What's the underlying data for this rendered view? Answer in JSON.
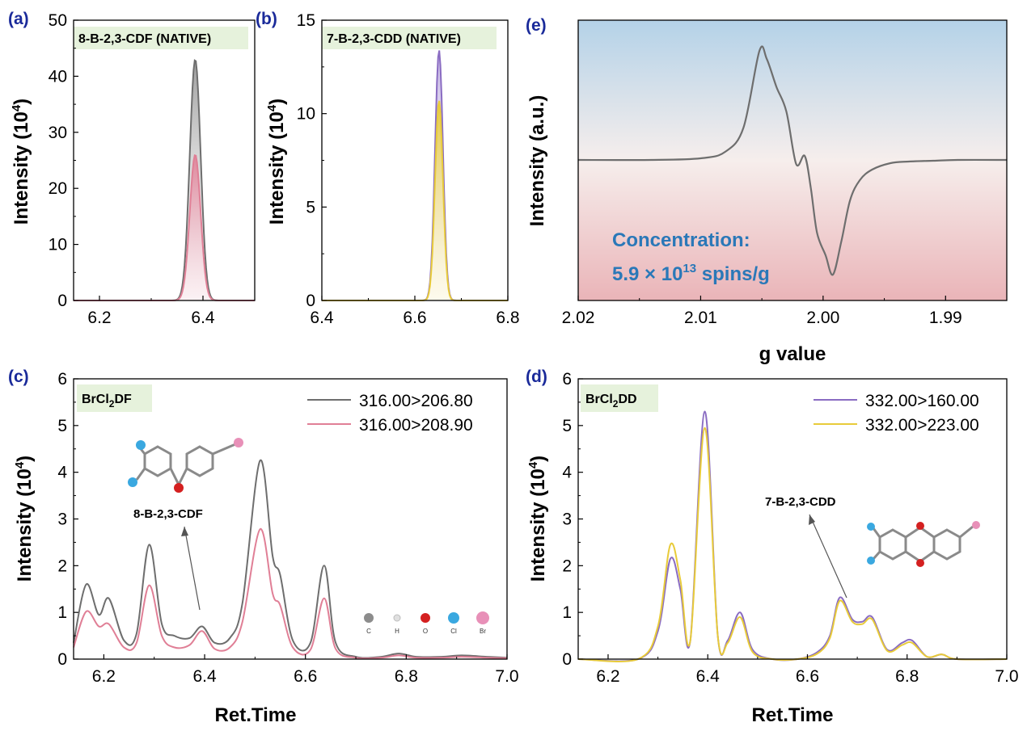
{
  "colors": {
    "gray": "#6e6e6e",
    "pink": "#e07f96",
    "purple": "#8a6cc2",
    "yellow": "#e8cb3a",
    "label_bg": "#e6f2dc",
    "panel_letter": "#1a2a9a",
    "concentration_text": "#2a78b8",
    "atom_C": "#8c8c8c",
    "atom_H": "#e0e0e0",
    "atom_O": "#d42020",
    "atom_Cl": "#3aa8e0",
    "atom_Br": "#e890b8"
  },
  "chart_data": [
    {
      "panel": "(a)",
      "type": "area",
      "box_label": "8-B-2,3-CDF (NATIVE)",
      "xlabel": "",
      "ylabel": "Intensity (10^4)",
      "xlim": [
        6.15,
        6.5
      ],
      "ylim": [
        0,
        50
      ],
      "xticks": [
        "6.2",
        "6.4"
      ],
      "yticks": [
        "0",
        "10",
        "20",
        "30",
        "40",
        "50"
      ],
      "peak_x": 6.385,
      "series": [
        {
          "color": "gray",
          "peak": 43
        },
        {
          "color": "pink",
          "peak": 26
        }
      ]
    },
    {
      "panel": "(b)",
      "type": "area",
      "box_label": "7-B-2,3-CDD (NATIVE)",
      "xlabel": "",
      "ylabel": "Intensity (10^4)",
      "xlim": [
        6.4,
        6.8
      ],
      "ylim": [
        0,
        15
      ],
      "xticks": [
        "6.4",
        "6.6",
        "6.8"
      ],
      "yticks": [
        "0",
        "5",
        "10",
        "15"
      ],
      "peak_x": 6.652,
      "series": [
        {
          "color": "purple",
          "peak": 13.4
        },
        {
          "color": "yellow",
          "peak": 10.7
        }
      ]
    },
    {
      "panel": "(c)",
      "type": "line",
      "box_label": "BrCl2DF",
      "xlabel": "Ret.Time",
      "ylabel": "Intensity (10^4)",
      "xlim": [
        6.14,
        7.0
      ],
      "ylim": [
        0,
        6
      ],
      "xticks": [
        "6.2",
        "6.4",
        "6.6",
        "6.8",
        "7.0"
      ],
      "yticks": [
        "0",
        "1",
        "2",
        "3",
        "4",
        "5",
        "6"
      ],
      "annotation": "8-B-2,3-CDF",
      "atom_key": [
        "C",
        "H",
        "O",
        "Cl",
        "Br"
      ],
      "series": [
        {
          "name": "316.00>206.80",
          "color": "gray",
          "x": [
            6.14,
            6.165,
            6.19,
            6.21,
            6.24,
            6.265,
            6.29,
            6.315,
            6.34,
            6.37,
            6.395,
            6.42,
            6.45,
            6.475,
            6.51,
            6.535,
            6.55,
            6.575,
            6.61,
            6.637,
            6.66,
            6.7,
            6.75,
            6.785,
            6.82,
            6.87,
            6.91,
            6.96,
            7.0
          ],
          "y": [
            0.35,
            1.6,
            0.95,
            1.3,
            0.4,
            0.55,
            2.45,
            0.75,
            0.5,
            0.45,
            0.7,
            0.35,
            0.45,
            1.2,
            4.25,
            2.2,
            1.8,
            0.4,
            0.35,
            2.0,
            0.35,
            0.05,
            0.05,
            0.12,
            0.05,
            0.05,
            0.08,
            0.05,
            0.03
          ]
        },
        {
          "name": "316.00>208.90",
          "color": "pink",
          "x": [
            6.14,
            6.165,
            6.19,
            6.21,
            6.24,
            6.265,
            6.29,
            6.315,
            6.34,
            6.37,
            6.395,
            6.42,
            6.45,
            6.475,
            6.51,
            6.535,
            6.55,
            6.575,
            6.61,
            6.637,
            6.66,
            6.7,
            6.75,
            6.785,
            6.82,
            6.87,
            6.91,
            6.96,
            7.0
          ],
          "y": [
            0.25,
            1.02,
            0.7,
            0.75,
            0.25,
            0.35,
            1.58,
            0.5,
            0.25,
            0.3,
            0.6,
            0.22,
            0.25,
            0.8,
            2.78,
            1.4,
            1.15,
            0.25,
            0.2,
            1.3,
            0.22,
            0.03,
            0.03,
            0.08,
            0.03,
            0.03,
            0.05,
            0.03,
            0.02
          ]
        }
      ]
    },
    {
      "panel": "(d)",
      "type": "line",
      "box_label": "BrCl2DD",
      "xlabel": "Ret.Time",
      "ylabel": "Intensity (10^4)",
      "xlim": [
        6.14,
        7.0
      ],
      "ylim": [
        0,
        6
      ],
      "xticks": [
        "6.2",
        "6.4",
        "6.6",
        "6.8",
        "7.0"
      ],
      "yticks": [
        "0",
        "1",
        "2",
        "3",
        "4",
        "5",
        "6"
      ],
      "annotation": "7-B-2,3-CDD",
      "series": [
        {
          "name": "332.00>160.00",
          "color": "purple",
          "x": [
            6.14,
            6.26,
            6.3,
            6.325,
            6.345,
            6.365,
            6.394,
            6.42,
            6.44,
            6.465,
            6.49,
            6.53,
            6.58,
            6.62,
            6.645,
            6.665,
            6.69,
            6.71,
            6.73,
            6.76,
            6.79,
            6.81,
            6.84,
            6.87,
            6.9,
            7.0
          ],
          "y": [
            0,
            0,
            0.6,
            2.15,
            1.5,
            0.4,
            5.3,
            0.5,
            0.4,
            1.0,
            0.2,
            0,
            0,
            0.15,
            0.5,
            1.32,
            0.85,
            0.8,
            0.9,
            0.2,
            0.35,
            0.4,
            0.05,
            0.1,
            0,
            0
          ]
        },
        {
          "name": "332.00>223.00",
          "color": "yellow",
          "x": [
            6.14,
            6.26,
            6.3,
            6.325,
            6.345,
            6.365,
            6.394,
            6.42,
            6.44,
            6.465,
            6.49,
            6.53,
            6.58,
            6.62,
            6.645,
            6.665,
            6.69,
            6.71,
            6.73,
            6.76,
            6.79,
            6.81,
            6.84,
            6.87,
            6.9,
            7.0
          ],
          "y": [
            0,
            0,
            0.7,
            2.45,
            1.7,
            0.4,
            4.95,
            0.5,
            0.35,
            0.9,
            0.15,
            0,
            0,
            0.12,
            0.45,
            1.25,
            0.8,
            0.75,
            0.85,
            0.18,
            0.3,
            0.35,
            0.05,
            0.1,
            0,
            0
          ]
        }
      ]
    },
    {
      "panel": "(e)",
      "type": "line",
      "xlabel": "g value",
      "ylabel": "Intensity (a.u.)",
      "xlim": [
        2.02,
        1.985
      ],
      "xticks": [
        "2.02",
        "2.01",
        "2.00",
        "1.99"
      ],
      "concentration_label": "Concentration:",
      "concentration_value": "5.9 × 10",
      "concentration_exponent": "13",
      "concentration_unit": " spins/g",
      "series": [
        {
          "color": "gray",
          "x": [
            2.02,
            2.014,
            2.01,
            2.008,
            2.0065,
            2.0052,
            2.0046,
            2.0038,
            2.003,
            2.0022,
            2.0015,
            2.001,
            2.0005,
            1.9998,
            1.9992,
            1.9985,
            1.9978,
            1.997,
            1.996,
            1.9945,
            1.993,
            1.991,
            1.989,
            1.985
          ],
          "y": [
            0,
            0,
            0.02,
            0.1,
            0.4,
            1.35,
            1.25,
            0.9,
            0.6,
            -0.05,
            0.05,
            -0.35,
            -0.9,
            -1.18,
            -1.42,
            -1.0,
            -0.5,
            -0.25,
            -0.12,
            -0.04,
            -0.02,
            -0.01,
            0,
            0
          ]
        }
      ]
    }
  ]
}
